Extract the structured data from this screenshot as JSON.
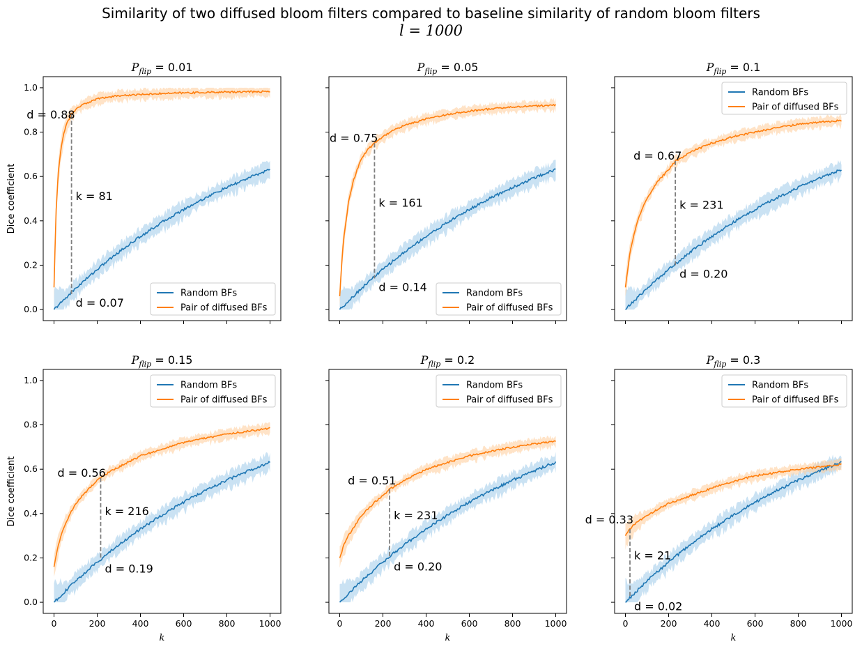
{
  "figure": {
    "title_line1": "Similarity of two diffused bloom filters compared to baseline similarity of random bloom filters",
    "title_line2": "l = 1000"
  },
  "colors": {
    "random": "#1f77b4",
    "diffused": "#ff7f0e",
    "random_band": "#9ecae9",
    "diffused_band": "#ffcc99",
    "marker_line": "#7f7f7f"
  },
  "chart_data": {
    "type": "line",
    "shared": {
      "xlabel": "k",
      "ylabel": "Dice coefficient",
      "xlim": [
        -50,
        1050
      ],
      "ylim": [
        -0.05,
        1.05
      ],
      "xticks": [
        0,
        200,
        400,
        600,
        800,
        1000
      ],
      "yticks": [
        0.0,
        0.2,
        0.4,
        0.6,
        0.8,
        1.0
      ],
      "legend": [
        "Random BFs",
        "Pair of diffused BFs"
      ],
      "random_series": {
        "x": [
          0,
          25,
          50,
          75,
          100,
          150,
          200,
          250,
          300,
          350,
          400,
          450,
          500,
          550,
          600,
          650,
          700,
          750,
          800,
          850,
          900,
          950,
          1000
        ],
        "y": [
          0.0,
          0.024,
          0.048,
          0.072,
          0.095,
          0.139,
          0.181,
          0.221,
          0.259,
          0.295,
          0.33,
          0.362,
          0.393,
          0.423,
          0.451,
          0.478,
          0.503,
          0.527,
          0.55,
          0.572,
          0.593,
          0.613,
          0.632
        ]
      }
    },
    "panels": [
      {
        "title": "P_flip = 0.01",
        "legend_position": "lower-right",
        "diffused": {
          "x": [
            0,
            10,
            20,
            30,
            40,
            50,
            60,
            70,
            80,
            100,
            125,
            150,
            200,
            250,
            300,
            400,
            500,
            600,
            700,
            800,
            900,
            1000
          ],
          "y": [
            0.1,
            0.45,
            0.62,
            0.71,
            0.77,
            0.81,
            0.84,
            0.86,
            0.88,
            0.9,
            0.92,
            0.93,
            0.95,
            0.958,
            0.964,
            0.97,
            0.974,
            0.977,
            0.979,
            0.981,
            0.982,
            0.983
          ]
        },
        "marker": {
          "k": 81,
          "d_diffused": 0.88,
          "d_random": 0.07,
          "k_label": "k = 81",
          "d_top_label": "d = 0.88",
          "d_bottom_label": "d = 0.07"
        }
      },
      {
        "title": "P_flip = 0.05",
        "legend_position": "lower-right",
        "diffused": {
          "x": [
            0,
            10,
            20,
            40,
            60,
            80,
            100,
            130,
            160,
            200,
            250,
            300,
            400,
            500,
            600,
            700,
            800,
            900,
            1000
          ],
          "y": [
            0.06,
            0.22,
            0.33,
            0.48,
            0.57,
            0.63,
            0.68,
            0.72,
            0.75,
            0.78,
            0.81,
            0.83,
            0.86,
            0.88,
            0.895,
            0.905,
            0.913,
            0.918,
            0.922
          ]
        },
        "marker": {
          "k": 161,
          "d_diffused": 0.75,
          "d_random": 0.14,
          "k_label": "k = 161",
          "d_top_label": "d = 0.75",
          "d_bottom_label": "d = 0.14"
        }
      },
      {
        "title": "P_flip = 0.1",
        "legend_position": "upper-right",
        "diffused": {
          "x": [
            0,
            20,
            40,
            60,
            80,
            100,
            130,
            160,
            200,
            231,
            270,
            300,
            400,
            500,
            600,
            700,
            800,
            900,
            1000
          ],
          "y": [
            0.1,
            0.25,
            0.34,
            0.41,
            0.46,
            0.5,
            0.55,
            0.59,
            0.63,
            0.67,
            0.69,
            0.71,
            0.75,
            0.78,
            0.8,
            0.82,
            0.835,
            0.845,
            0.852
          ]
        },
        "marker": {
          "k": 231,
          "d_diffused": 0.67,
          "d_random": 0.2,
          "k_label": "k = 231",
          "d_top_label": "d = 0.67",
          "d_bottom_label": "d = 0.20"
        }
      },
      {
        "title": "P_flip = 0.15",
        "legend_position": "upper-right",
        "diffused": {
          "x": [
            0,
            20,
            40,
            60,
            80,
            100,
            130,
            160,
            200,
            216,
            260,
            300,
            400,
            500,
            600,
            700,
            800,
            900,
            1000
          ],
          "y": [
            0.16,
            0.26,
            0.32,
            0.37,
            0.41,
            0.44,
            0.48,
            0.51,
            0.55,
            0.56,
            0.59,
            0.61,
            0.66,
            0.69,
            0.72,
            0.74,
            0.757,
            0.772,
            0.785
          ]
        },
        "marker": {
          "k": 216,
          "d_diffused": 0.56,
          "d_random": 0.19,
          "k_label": "k = 216",
          "d_top_label": "d = 0.56",
          "d_bottom_label": "d = 0.19"
        }
      },
      {
        "title": "P_flip = 0.2",
        "legend_position": "upper-right",
        "diffused": {
          "x": [
            0,
            20,
            40,
            60,
            80,
            100,
            130,
            160,
            200,
            231,
            270,
            300,
            400,
            500,
            600,
            700,
            800,
            900,
            1000
          ],
          "y": [
            0.2,
            0.26,
            0.3,
            0.33,
            0.36,
            0.39,
            0.42,
            0.45,
            0.48,
            0.51,
            0.53,
            0.55,
            0.6,
            0.63,
            0.66,
            0.68,
            0.7,
            0.715,
            0.725
          ]
        },
        "marker": {
          "k": 231,
          "d_diffused": 0.51,
          "d_random": 0.2,
          "k_label": "k = 231",
          "d_top_label": "d = 0.51",
          "d_bottom_label": "d = 0.20"
        }
      },
      {
        "title": "P_flip = 0.3",
        "legend_position": "upper-right",
        "diffused": {
          "x": [
            0,
            21,
            50,
            100,
            150,
            200,
            300,
            400,
            500,
            600,
            700,
            800,
            900,
            1000
          ],
          "y": [
            0.3,
            0.33,
            0.36,
            0.39,
            0.42,
            0.445,
            0.48,
            0.515,
            0.545,
            0.57,
            0.585,
            0.6,
            0.61,
            0.622
          ]
        },
        "marker": {
          "k": 21,
          "d_diffused": 0.33,
          "d_random": 0.02,
          "k_label": "k = 21",
          "d_top_label": "d = 0.33",
          "d_bottom_label": "d = 0.02"
        }
      }
    ]
  }
}
